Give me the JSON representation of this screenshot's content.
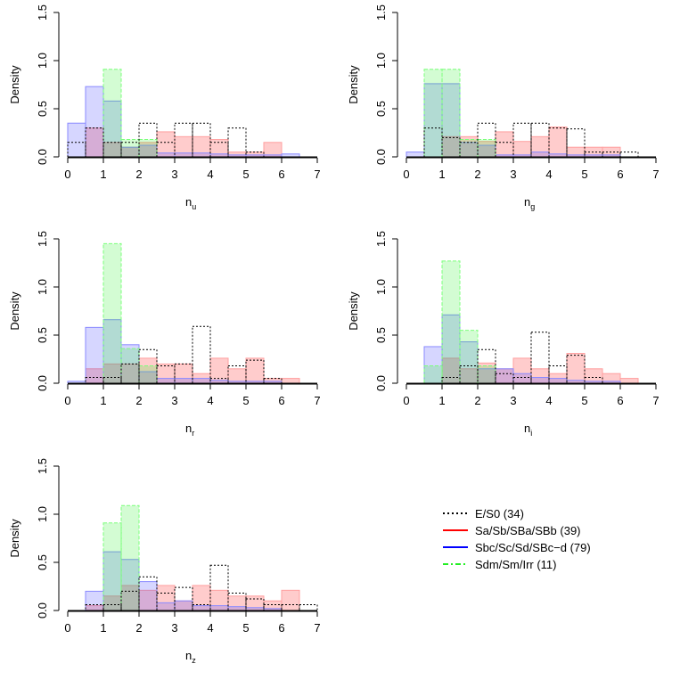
{
  "chart_data": {
    "type": "histogram",
    "x_ticks": [
      0,
      1,
      2,
      3,
      4,
      5,
      6,
      7
    ],
    "y_ticks": [
      "0.0",
      "0.5",
      "1.0",
      "1.5"
    ],
    "xlim": [
      0,
      7
    ],
    "ylim": [
      0,
      1.5
    ],
    "ylabel": "Density",
    "bin_width": 0.5,
    "series_styles": [
      {
        "key": "es0",
        "stroke": "#000000",
        "fill": "none",
        "dash": "2,2"
      },
      {
        "key": "sab",
        "stroke": "#ff9f9f",
        "fill": "#ff0000",
        "fill_opacity": 0.2
      },
      {
        "key": "sbc",
        "stroke": "#8a8aff",
        "fill": "#3333ff",
        "fill_opacity": 0.2
      },
      {
        "key": "sdm",
        "stroke": "#7bff7b",
        "fill": "#22ee22",
        "fill_opacity": 0.2,
        "dash": "4,2"
      }
    ],
    "panels": [
      {
        "name": "u",
        "xlabel": "n",
        "xlabel_sub": "u",
        "series": {
          "es0": [
            [
              0.0,
              0.15
            ],
            [
              0.5,
              0.3
            ],
            [
              1.0,
              0.15
            ],
            [
              1.5,
              0.15
            ],
            [
              2.0,
              0.35
            ],
            [
              2.5,
              0.15
            ],
            [
              3.0,
              0.35
            ],
            [
              3.5,
              0.35
            ],
            [
              4.0,
              0.15
            ],
            [
              4.5,
              0.3
            ],
            [
              5.0,
              0.05
            ]
          ],
          "sab": [
            [
              0.5,
              0.3
            ],
            [
              1.0,
              0.15
            ],
            [
              1.5,
              0.1
            ],
            [
              2.0,
              0.15
            ],
            [
              2.5,
              0.26
            ],
            [
              3.0,
              0.21
            ],
            [
              3.5,
              0.21
            ],
            [
              4.0,
              0.18
            ],
            [
              4.5,
              0.05
            ],
            [
              5.0,
              0.05
            ],
            [
              5.5,
              0.15
            ]
          ],
          "sbc": [
            [
              0.0,
              0.35
            ],
            [
              0.5,
              0.73
            ],
            [
              1.0,
              0.58
            ],
            [
              1.5,
              0.1
            ],
            [
              2.0,
              0.12
            ],
            [
              2.5,
              0.04
            ],
            [
              3.0,
              0.04
            ],
            [
              3.5,
              0.04
            ],
            [
              4.0,
              0.03
            ],
            [
              4.5,
              0.02
            ],
            [
              5.0,
              0.02
            ],
            [
              5.5,
              0.02
            ],
            [
              6.0,
              0.03
            ]
          ],
          "sdm": [
            [
              1.0,
              0.91
            ],
            [
              1.5,
              0.18
            ],
            [
              2.0,
              0.18
            ]
          ]
        }
      },
      {
        "name": "g",
        "xlabel": "n",
        "xlabel_sub": "g",
        "series": {
          "es0": [
            [
              0.5,
              0.3
            ],
            [
              1.0,
              0.2
            ],
            [
              1.5,
              0.15
            ],
            [
              2.0,
              0.35
            ],
            [
              2.5,
              0.15
            ],
            [
              3.0,
              0.35
            ],
            [
              3.5,
              0.35
            ],
            [
              4.0,
              0.3
            ],
            [
              4.5,
              0.29
            ],
            [
              5.0,
              0.05
            ],
            [
              5.5,
              0.05
            ],
            [
              6.0,
              0.05
            ]
          ],
          "sab": [
            [
              1.0,
              0.21
            ],
            [
              1.5,
              0.21
            ],
            [
              2.0,
              0.16
            ],
            [
              2.5,
              0.26
            ],
            [
              3.0,
              0.16
            ],
            [
              3.5,
              0.21
            ],
            [
              4.0,
              0.31
            ],
            [
              4.5,
              0.1
            ],
            [
              5.0,
              0.1
            ],
            [
              5.5,
              0.1
            ]
          ],
          "sbc": [
            [
              0.0,
              0.05
            ],
            [
              0.5,
              0.76
            ],
            [
              1.0,
              0.76
            ],
            [
              1.5,
              0.15
            ],
            [
              2.0,
              0.12
            ],
            [
              2.5,
              0.02
            ],
            [
              3.0,
              0.02
            ],
            [
              3.5,
              0.05
            ],
            [
              4.0,
              0.03
            ],
            [
              4.5,
              0.02
            ],
            [
              5.0,
              0.02
            ],
            [
              5.5,
              0.02
            ]
          ],
          "sdm": [
            [
              0.5,
              0.91
            ],
            [
              1.0,
              0.91
            ],
            [
              1.5,
              0.18
            ],
            [
              2.0,
              0.18
            ]
          ]
        }
      },
      {
        "name": "r",
        "xlabel": "n",
        "xlabel_sub": "r",
        "series": {
          "es0": [
            [
              0.5,
              0.06
            ],
            [
              1.0,
              0.06
            ],
            [
              1.5,
              0.2
            ],
            [
              2.0,
              0.35
            ],
            [
              2.5,
              0.18
            ],
            [
              3.0,
              0.2
            ],
            [
              3.5,
              0.59
            ],
            [
              4.0,
              0.05
            ],
            [
              4.5,
              0.18
            ],
            [
              5.0,
              0.24
            ],
            [
              5.5,
              0.05
            ]
          ],
          "sab": [
            [
              0.5,
              0.15
            ],
            [
              1.0,
              0.2
            ],
            [
              1.5,
              0.2
            ],
            [
              2.0,
              0.26
            ],
            [
              2.5,
              0.2
            ],
            [
              3.0,
              0.2
            ],
            [
              3.5,
              0.1
            ],
            [
              4.0,
              0.26
            ],
            [
              4.5,
              0.15
            ],
            [
              5.0,
              0.26
            ],
            [
              5.5,
              0.05
            ],
            [
              6.0,
              0.05
            ]
          ],
          "sbc": [
            [
              0.0,
              0.02
            ],
            [
              0.5,
              0.58
            ],
            [
              1.0,
              0.66
            ],
            [
              1.5,
              0.4
            ],
            [
              2.0,
              0.12
            ],
            [
              2.5,
              0.05
            ],
            [
              3.0,
              0.05
            ],
            [
              3.5,
              0.05
            ],
            [
              4.0,
              0.03
            ],
            [
              4.5,
              0.02
            ],
            [
              5.0,
              0.02
            ],
            [
              5.5,
              0.02
            ]
          ],
          "sdm": [
            [
              1.0,
              1.45
            ],
            [
              1.5,
              0.36
            ],
            [
              2.0,
              0.18
            ]
          ]
        }
      },
      {
        "name": "i",
        "xlabel": "n",
        "xlabel_sub": "i",
        "series": {
          "es0": [
            [
              1.0,
              0.06
            ],
            [
              1.5,
              0.18
            ],
            [
              2.0,
              0.35
            ],
            [
              2.5,
              0.1
            ],
            [
              3.0,
              0.06
            ],
            [
              3.5,
              0.53
            ],
            [
              4.0,
              0.18
            ],
            [
              4.5,
              0.29
            ],
            [
              5.0,
              0.06
            ]
          ],
          "sab": [
            [
              1.0,
              0.26
            ],
            [
              1.5,
              0.15
            ],
            [
              2.0,
              0.21
            ],
            [
              2.5,
              0.15
            ],
            [
              3.0,
              0.26
            ],
            [
              3.5,
              0.15
            ],
            [
              4.0,
              0.1
            ],
            [
              4.5,
              0.31
            ],
            [
              5.0,
              0.15
            ],
            [
              5.5,
              0.1
            ],
            [
              6.0,
              0.05
            ]
          ],
          "sbc": [
            [
              0.5,
              0.38
            ],
            [
              1.0,
              0.71
            ],
            [
              1.5,
              0.43
            ],
            [
              2.0,
              0.15
            ],
            [
              2.5,
              0.15
            ],
            [
              3.0,
              0.1
            ],
            [
              3.5,
              0.06
            ],
            [
              4.0,
              0.05
            ],
            [
              4.5,
              0.03
            ],
            [
              5.0,
              0.02
            ],
            [
              5.5,
              0.02
            ]
          ],
          "sdm": [
            [
              0.5,
              0.18
            ],
            [
              1.0,
              1.27
            ],
            [
              1.5,
              0.55
            ],
            [
              2.0,
              0.18
            ]
          ]
        }
      },
      {
        "name": "z",
        "xlabel": "n",
        "xlabel_sub": "z",
        "series": {
          "es0": [
            [
              0.5,
              0.06
            ],
            [
              1.0,
              0.06
            ],
            [
              1.5,
              0.2
            ],
            [
              2.0,
              0.35
            ],
            [
              2.5,
              0.18
            ],
            [
              3.0,
              0.24
            ],
            [
              3.5,
              0.06
            ],
            [
              4.0,
              0.47
            ],
            [
              4.5,
              0.18
            ],
            [
              5.0,
              0.12
            ],
            [
              5.5,
              0.06
            ],
            [
              6.0,
              0.06
            ],
            [
              6.5,
              0.06
            ]
          ],
          "sab": [
            [
              0.5,
              0.05
            ],
            [
              1.0,
              0.15
            ],
            [
              1.5,
              0.26
            ],
            [
              2.0,
              0.21
            ],
            [
              2.5,
              0.26
            ],
            [
              3.0,
              0.1
            ],
            [
              3.5,
              0.26
            ],
            [
              4.0,
              0.21
            ],
            [
              4.5,
              0.15
            ],
            [
              5.0,
              0.15
            ],
            [
              5.5,
              0.1
            ],
            [
              6.0,
              0.21
            ]
          ],
          "sbc": [
            [
              0.5,
              0.2
            ],
            [
              1.0,
              0.61
            ],
            [
              1.5,
              0.53
            ],
            [
              2.0,
              0.3
            ],
            [
              2.5,
              0.08
            ],
            [
              3.0,
              0.1
            ],
            [
              3.5,
              0.05
            ],
            [
              4.0,
              0.05
            ],
            [
              4.5,
              0.04
            ],
            [
              5.0,
              0.03
            ],
            [
              5.5,
              0.02
            ]
          ],
          "sdm": [
            [
              1.0,
              0.91
            ],
            [
              1.5,
              1.09
            ]
          ]
        }
      }
    ]
  },
  "legend": {
    "items": [
      {
        "key": "es0",
        "label": "E/S0 (34)",
        "color": "#000000",
        "dash": "2,3"
      },
      {
        "key": "sab",
        "label": "Sa/Sb/SBa/SBb (39)",
        "color": "#ff0000",
        "dash": ""
      },
      {
        "key": "sbc",
        "label": "Sbc/Sc/Sd/SBc−d (79)",
        "color": "#0000ff",
        "dash": ""
      },
      {
        "key": "sdm",
        "label": "Sdm/Sm/Irr (11)",
        "color": "#22ee22",
        "dash": "6,3,2,3"
      }
    ]
  }
}
